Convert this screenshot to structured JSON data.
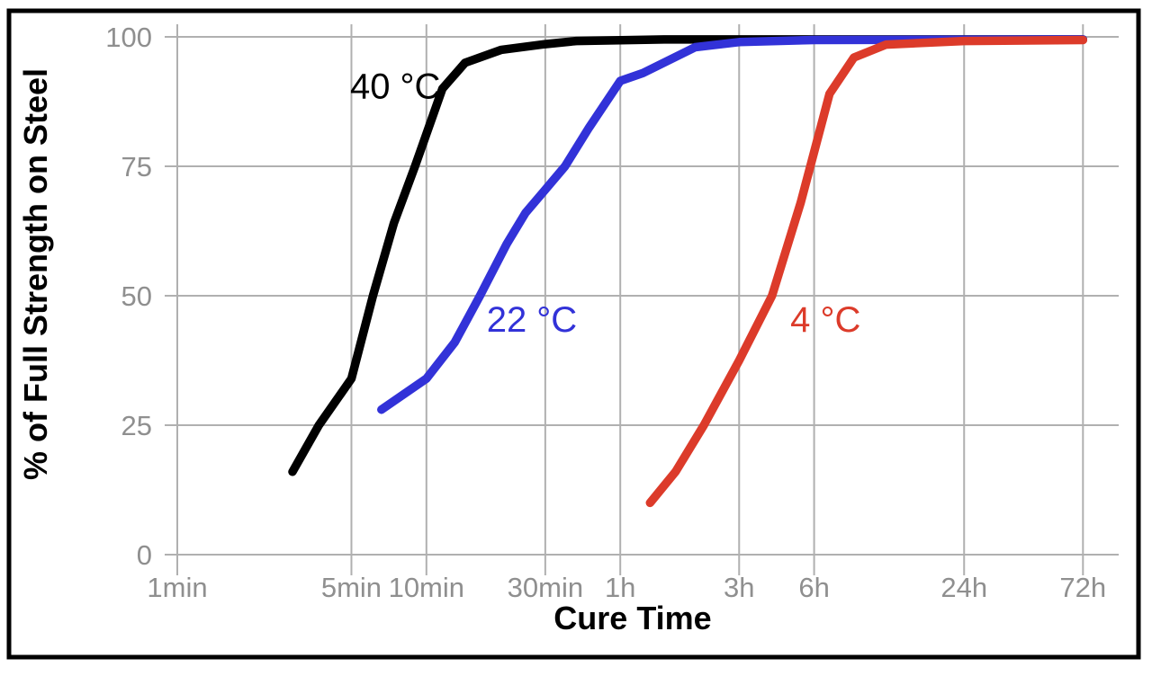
{
  "chart_data": {
    "type": "line",
    "title": "",
    "xlabel": "Cure Time",
    "ylabel": "% of Full Strength on Steel",
    "x_scale": "log",
    "x_unit": "minutes",
    "xlim_minutes": [
      1,
      4320
    ],
    "ylim": [
      0,
      100
    ],
    "grid": true,
    "legend_position": "inline-labels",
    "x_ticks": [
      {
        "label": "1min",
        "minutes": 1
      },
      {
        "label": "5min",
        "minutes": 5
      },
      {
        "label": "10min",
        "minutes": 10
      },
      {
        "label": "30min",
        "minutes": 30
      },
      {
        "label": "1h",
        "minutes": 60
      },
      {
        "label": "3h",
        "minutes": 180
      },
      {
        "label": "6h",
        "minutes": 360
      },
      {
        "label": "24h",
        "minutes": 1440
      },
      {
        "label": "72h",
        "minutes": 4320
      }
    ],
    "y_ticks": [
      {
        "label": "0",
        "value": 0
      },
      {
        "label": "25",
        "value": 25
      },
      {
        "label": "50",
        "value": 50
      },
      {
        "label": "75",
        "value": 75
      },
      {
        "label": "100",
        "value": 100
      }
    ],
    "series": [
      {
        "name": "40 °C",
        "color": "#000000",
        "label_at": {
          "minutes": 7.5,
          "percent": 90.5
        },
        "points": [
          [
            2.9,
            16
          ],
          [
            3.7,
            25
          ],
          [
            5,
            34
          ],
          [
            6.1,
            50
          ],
          [
            7.4,
            64
          ],
          [
            9,
            75
          ],
          [
            11.6,
            90
          ],
          [
            14.3,
            95
          ],
          [
            20,
            97.5
          ],
          [
            30,
            98.6
          ],
          [
            40,
            99.2
          ],
          [
            90,
            99.5
          ],
          [
            4320,
            99.5
          ]
        ]
      },
      {
        "name": "22 °C",
        "color": "#3232D8",
        "label_at": {
          "minutes": 26.5,
          "percent": 45.5
        },
        "points": [
          [
            6.6,
            28
          ],
          [
            10,
            34
          ],
          [
            13,
            41
          ],
          [
            16.4,
            50
          ],
          [
            21,
            60
          ],
          [
            25,
            66
          ],
          [
            30,
            70.5
          ],
          [
            36,
            75
          ],
          [
            45,
            82.5
          ],
          [
            60,
            91.5
          ],
          [
            74,
            93
          ],
          [
            120,
            98
          ],
          [
            180,
            99
          ],
          [
            360,
            99.4
          ],
          [
            4320,
            99.5
          ]
        ]
      },
      {
        "name": "4 °C",
        "color": "#DC3B2A",
        "label_at": {
          "minutes": 400,
          "percent": 45.5
        },
        "points": [
          [
            79,
            10
          ],
          [
            100,
            16
          ],
          [
            130,
            25
          ],
          [
            180,
            37.5
          ],
          [
            244,
            50
          ],
          [
            318,
            68
          ],
          [
            415,
            89
          ],
          [
            520,
            96
          ],
          [
            700,
            98.5
          ],
          [
            1440,
            99.2
          ],
          [
            4320,
            99.4
          ]
        ]
      }
    ],
    "colors": {
      "grid": "#B0B0B0",
      "tick_text": "#8F8F8F",
      "axis_text": "#000000",
      "frame": "#000000",
      "background": "#FFFFFF"
    }
  }
}
